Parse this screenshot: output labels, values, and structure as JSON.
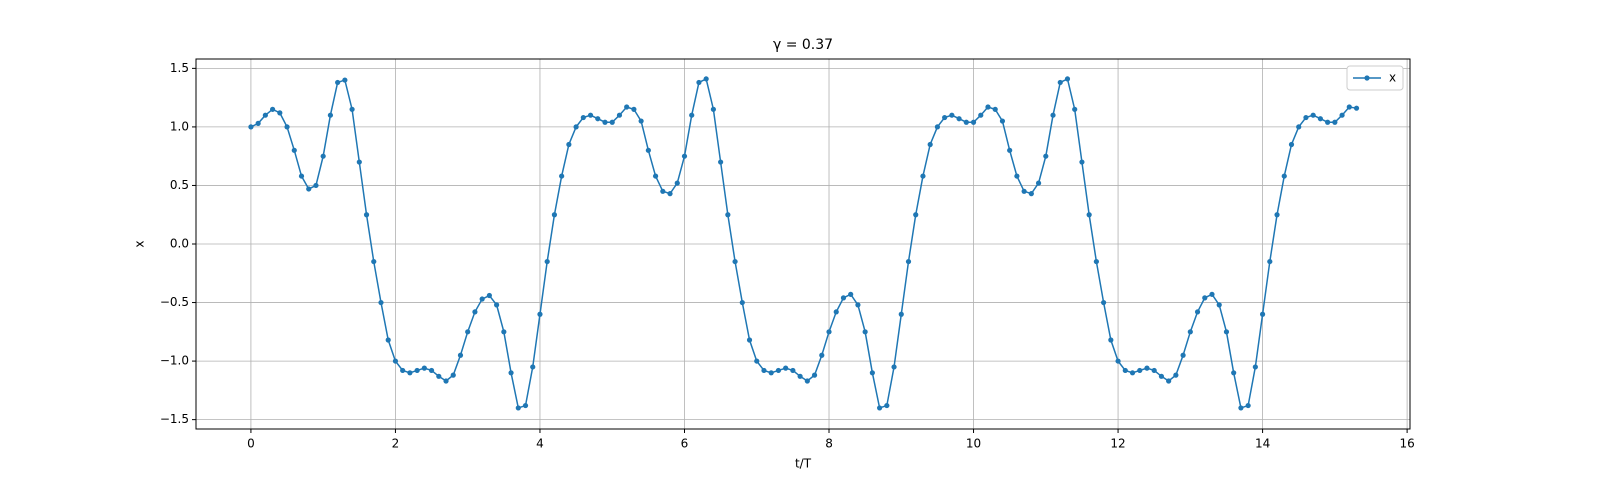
{
  "chart_data": {
    "type": "line",
    "title": "γ = 0.37",
    "x_label": "t/T",
    "y_label": "x",
    "x": [
      0,
      0.1,
      0.2,
      0.3,
      0.4,
      0.5,
      0.6,
      0.7,
      0.8,
      0.9,
      1,
      1.1,
      1.2,
      1.3,
      1.4,
      1.5,
      1.6,
      1.7,
      1.8,
      1.9,
      2,
      2.1,
      2.2,
      2.3,
      2.4,
      2.5,
      2.6,
      2.7,
      2.8,
      2.9,
      3,
      3.1,
      3.2,
      3.3,
      3.4,
      3.5,
      3.6,
      3.7,
      3.8,
      3.9,
      4,
      4.1,
      4.2,
      4.3,
      4.4,
      4.5,
      4.6,
      4.7,
      4.8,
      4.9,
      5,
      5.1,
      5.2,
      5.3,
      5.4,
      5.5,
      5.6,
      5.7,
      5.8,
      5.9,
      6,
      6.1,
      6.2,
      6.3,
      6.4,
      6.5,
      6.6,
      6.7,
      6.8,
      6.9,
      7,
      7.1,
      7.2,
      7.3,
      7.4,
      7.5,
      7.6,
      7.7,
      7.8,
      7.9,
      8,
      8.1,
      8.2,
      8.3,
      8.4,
      8.5,
      8.6,
      8.7,
      8.8,
      8.9,
      9,
      9.1,
      9.2,
      9.3,
      9.4,
      9.5,
      9.6,
      9.7,
      9.8,
      9.9,
      10,
      10.1,
      10.2,
      10.3,
      10.4,
      10.5,
      10.6,
      10.7,
      10.8,
      10.9,
      11,
      11.1,
      11.2,
      11.3,
      11.4,
      11.5,
      11.6,
      11.7,
      11.8,
      11.9,
      12,
      12.1,
      12.2,
      12.3,
      12.4,
      12.5,
      12.6,
      12.7,
      12.8,
      12.9,
      13,
      13.1,
      13.2,
      13.3,
      13.4,
      13.5,
      13.6,
      13.7,
      13.8,
      13.9,
      14,
      14.1,
      14.2,
      14.3,
      14.4,
      14.5,
      14.6,
      14.7,
      14.8,
      14.9,
      15,
      15.1,
      15.2,
      15.3
    ],
    "series": [
      {
        "name": "x",
        "color": "#1f77b4",
        "values": [
          1.0,
          1.03,
          1.1,
          1.15,
          1.12,
          1.0,
          0.8,
          0.58,
          0.47,
          0.5,
          0.75,
          1.1,
          1.38,
          1.4,
          1.15,
          0.7,
          0.25,
          -0.15,
          -0.5,
          -0.82,
          -1.0,
          -1.08,
          -1.1,
          -1.08,
          -1.06,
          -1.08,
          -1.13,
          -1.17,
          -1.12,
          -0.95,
          -0.75,
          -0.58,
          -0.47,
          -0.44,
          -0.52,
          -0.75,
          -1.1,
          -1.4,
          -1.38,
          -1.05,
          -0.6,
          -0.15,
          0.25,
          0.58,
          0.85,
          1.0,
          1.08,
          1.1,
          1.07,
          1.04,
          1.04,
          1.1,
          1.17,
          1.15,
          1.05,
          0.8,
          0.58,
          0.45,
          0.43,
          0.52,
          0.75,
          1.1,
          1.38,
          1.41,
          1.15,
          0.7,
          0.25,
          -0.15,
          -0.5,
          -0.82,
          -1.0,
          -1.08,
          -1.1,
          -1.08,
          -1.06,
          -1.08,
          -1.13,
          -1.17,
          -1.12,
          -0.95,
          -0.75,
          -0.58,
          -0.46,
          -0.43,
          -0.52,
          -0.75,
          -1.1,
          -1.4,
          -1.38,
          -1.05,
          -0.6,
          -0.15,
          0.25,
          0.58,
          0.85,
          1.0,
          1.08,
          1.1,
          1.07,
          1.04,
          1.04,
          1.1,
          1.17,
          1.15,
          1.05,
          0.8,
          0.58,
          0.45,
          0.43,
          0.52,
          0.75,
          1.1,
          1.38,
          1.41,
          1.15,
          0.7,
          0.25,
          -0.15,
          -0.5,
          -0.82,
          -1.0,
          -1.08,
          -1.1,
          -1.08,
          -1.06,
          -1.08,
          -1.13,
          -1.17,
          -1.12,
          -0.95,
          -0.75,
          -0.58,
          -0.46,
          -0.43,
          -0.52,
          -0.75,
          -1.1,
          -1.4,
          -1.38,
          -1.05,
          -0.6,
          -0.15,
          0.25,
          0.58,
          0.85,
          1.0,
          1.08,
          1.1,
          1.07,
          1.04,
          1.04,
          1.1,
          1.17,
          1.16
        ]
      }
    ],
    "xlim": [
      -0.76,
      16.04
    ],
    "ylim": [
      -1.58,
      1.58
    ],
    "xticks": [
      0,
      2,
      4,
      6,
      8,
      10,
      12,
      14,
      16
    ],
    "yticks": [
      {
        "value": -1.5,
        "label": "−1.5"
      },
      {
        "value": -1,
        "label": "−1.0"
      },
      {
        "value": -0.5,
        "label": "−0.5"
      },
      {
        "value": 0,
        "label": "0.0"
      },
      0.5,
      {
        "value": 1,
        "label": "1.0"
      },
      1.5
    ],
    "grid": true,
    "legend": "upper right"
  }
}
